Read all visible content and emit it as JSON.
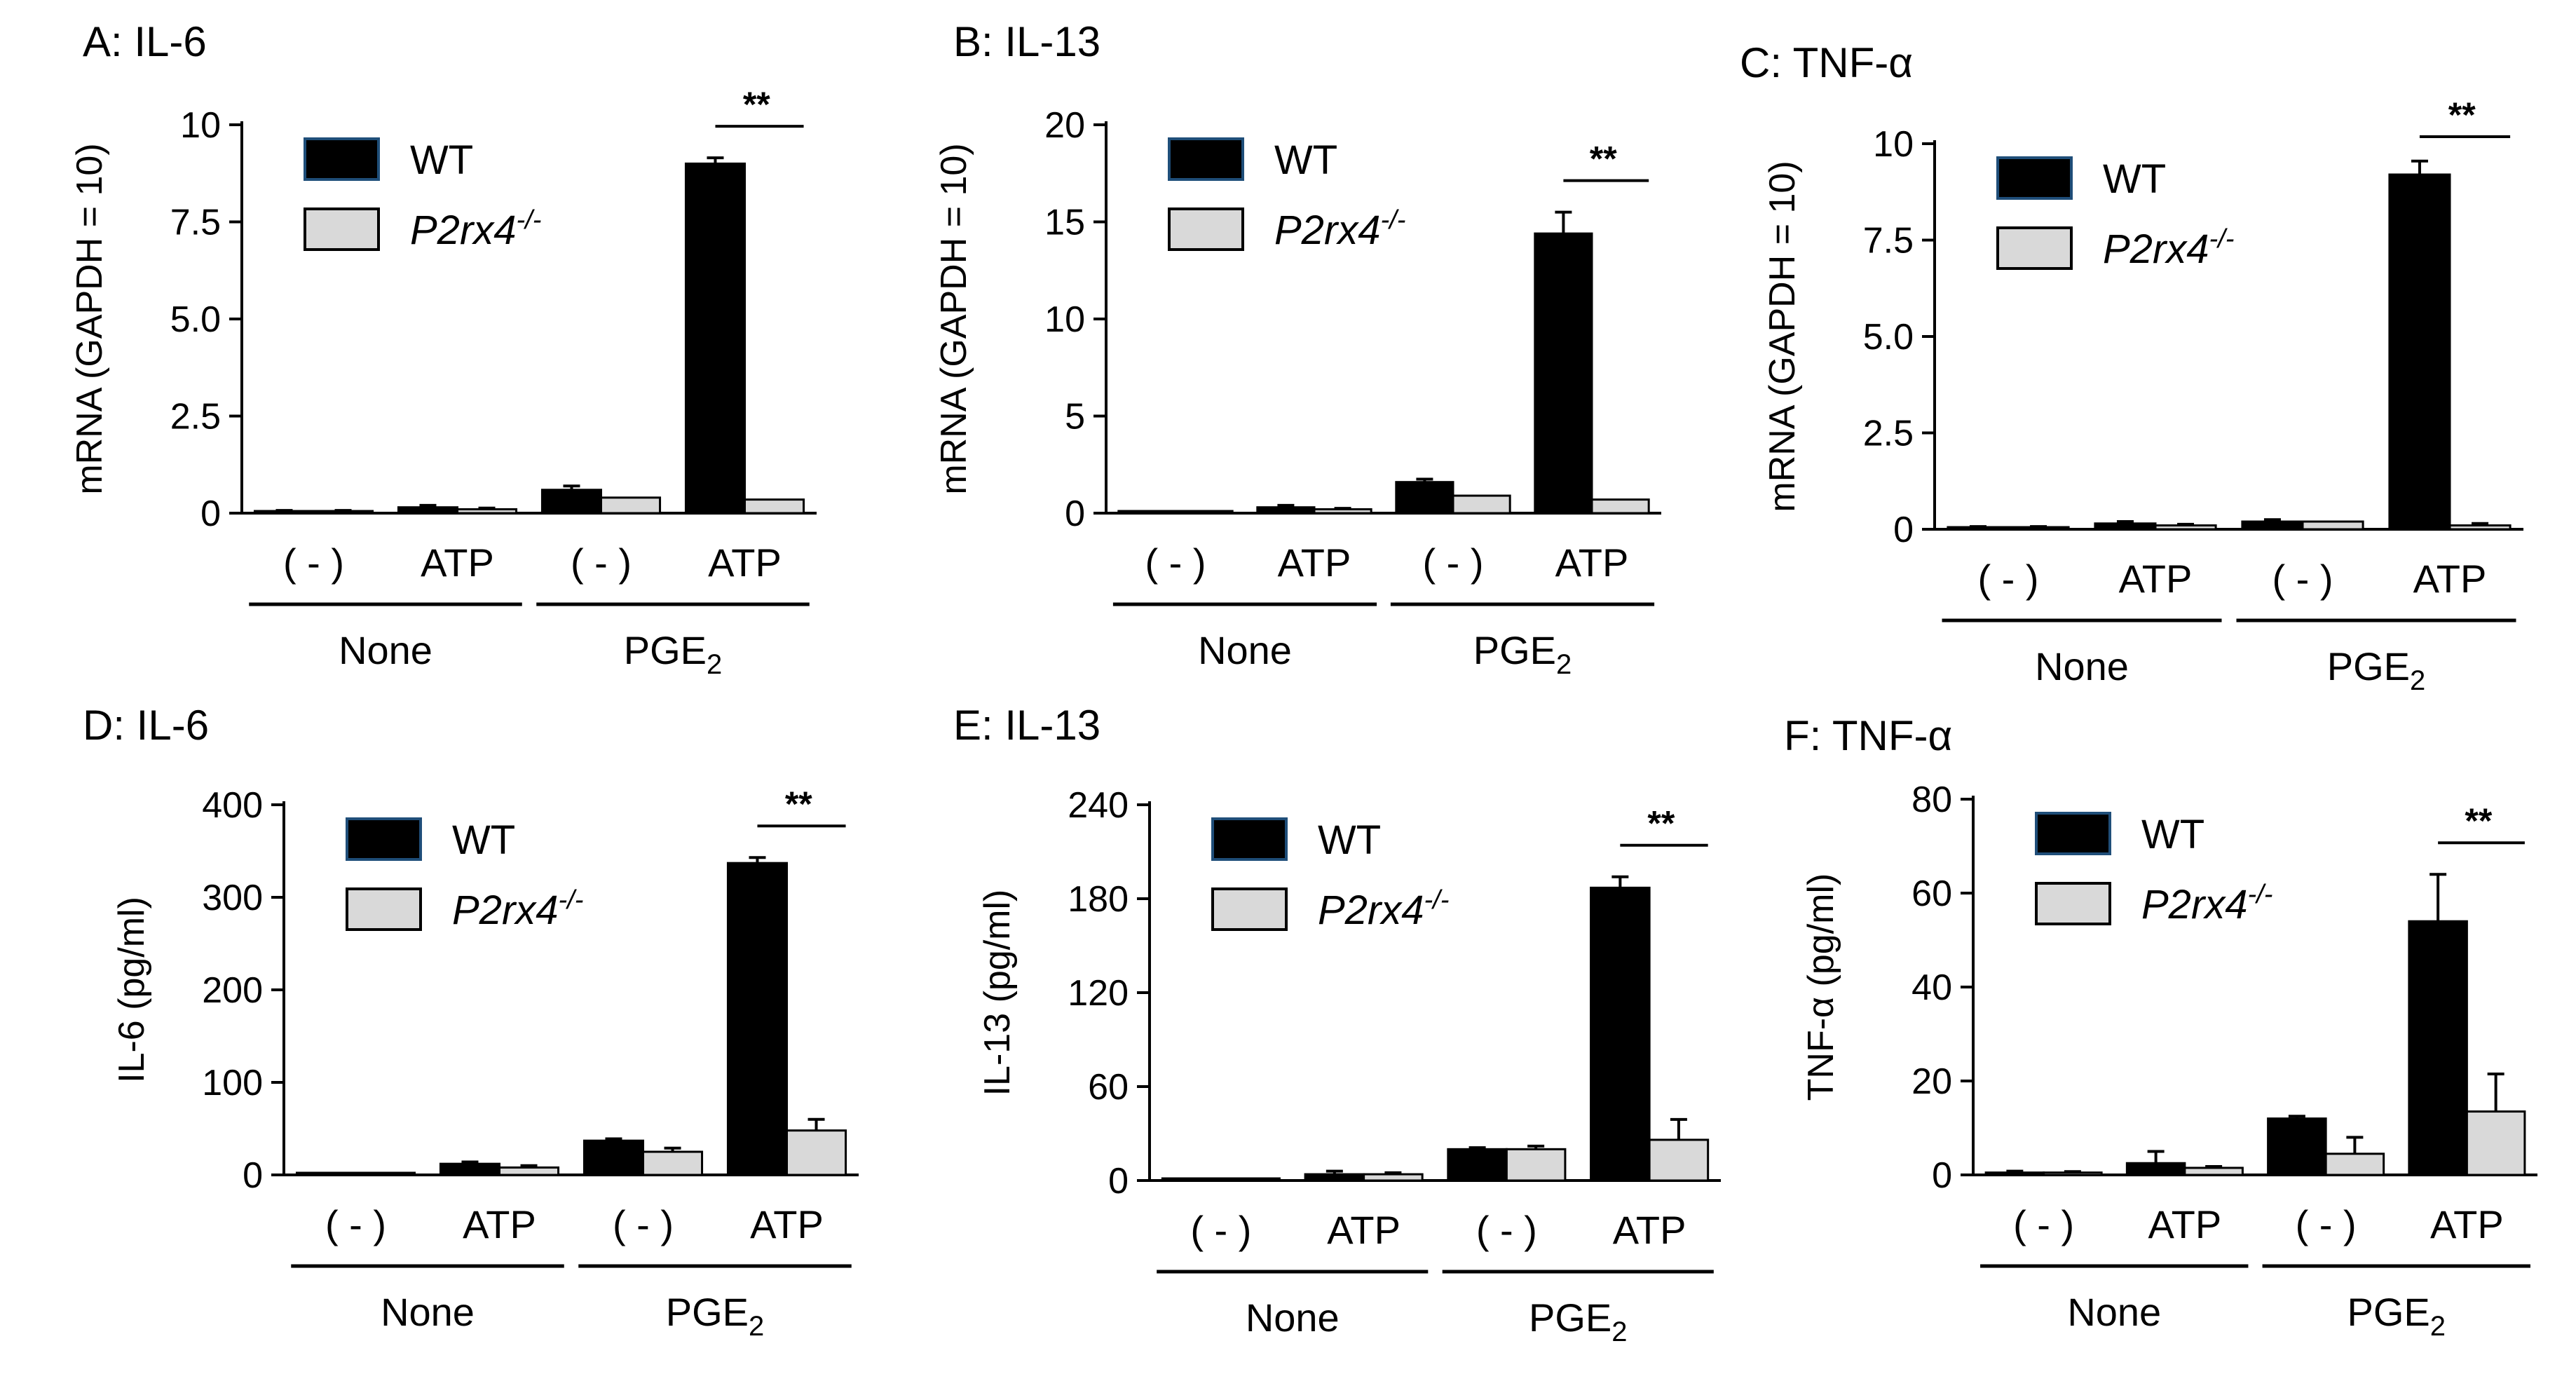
{
  "colors": {
    "wt": "#000000",
    "ko": "#d9d9d9",
    "axis": "#000000"
  },
  "legend": {
    "wt": "WT",
    "ko_base": "P2rx4",
    "ko_sup": "-/-"
  },
  "conditions": [
    "( - )",
    "ATP",
    "( - )",
    "ATP"
  ],
  "groups": {
    "none": "None",
    "pge_base": "PGE",
    "pge_sub": "2"
  },
  "chart_data": [
    {
      "type": "bar",
      "title": "A: IL-6",
      "ylabel": "mRNA (GAPDH = 10)",
      "ylim": [
        0,
        10
      ],
      "yticks": [
        "0",
        "2.5",
        "5.0",
        "7.5",
        "10"
      ],
      "ytick_values": [
        0,
        2.5,
        5,
        7.5,
        10
      ],
      "categories": [
        "( - ) None",
        "ATP None",
        "( - ) PGE2",
        "ATP PGE2"
      ],
      "series": [
        {
          "name": "WT",
          "values": [
            0.05,
            0.15,
            0.6,
            9.0
          ],
          "errors": [
            0.02,
            0.05,
            0.1,
            0.15
          ]
        },
        {
          "name": "P2rx4-/-",
          "values": [
            0.05,
            0.1,
            0.4,
            0.35
          ],
          "errors": [
            0.02,
            0.03,
            0.0,
            0.0
          ]
        }
      ],
      "significance": "**"
    },
    {
      "type": "bar",
      "title": "B: IL-13",
      "ylabel": "mRNA (GAPDH = 10)",
      "ylim": [
        0,
        20
      ],
      "yticks": [
        "0",
        "5",
        "10",
        "15",
        "20"
      ],
      "ytick_values": [
        0,
        5,
        10,
        15,
        20
      ],
      "categories": [
        "( - ) None",
        "ATP None",
        "( - ) PGE2",
        "ATP PGE2"
      ],
      "series": [
        {
          "name": "WT",
          "values": [
            0.0,
            0.3,
            1.6,
            14.4
          ],
          "errors": [
            0.0,
            0.1,
            0.15,
            1.1
          ]
        },
        {
          "name": "P2rx4-/-",
          "values": [
            0.0,
            0.2,
            0.9,
            0.7
          ],
          "errors": [
            0.0,
            0.05,
            0.0,
            0.0
          ]
        }
      ],
      "significance": "**"
    },
    {
      "type": "bar",
      "title": "C: TNF-α",
      "ylabel": "mRNA (GAPDH = 10)",
      "ylim": [
        0,
        10
      ],
      "yticks": [
        "0",
        "2.5",
        "5.0",
        "7.5",
        "10"
      ],
      "ytick_values": [
        0,
        2.5,
        5,
        7.5,
        10
      ],
      "categories": [
        "( - ) None",
        "ATP None",
        "( - ) PGE2",
        "ATP PGE2"
      ],
      "series": [
        {
          "name": "WT",
          "values": [
            0.05,
            0.15,
            0.2,
            9.2
          ],
          "errors": [
            0.02,
            0.05,
            0.05,
            0.35
          ]
        },
        {
          "name": "P2rx4-/-",
          "values": [
            0.05,
            0.1,
            0.2,
            0.1
          ],
          "errors": [
            0.02,
            0.03,
            0.0,
            0.05
          ]
        }
      ],
      "significance": "**"
    },
    {
      "type": "bar",
      "title": "D: IL-6",
      "ylabel": "IL-6 (pg/ml)",
      "ylim": [
        0,
        400
      ],
      "yticks": [
        "0",
        "100",
        "200",
        "300",
        "400"
      ],
      "ytick_values": [
        0,
        100,
        200,
        300,
        400
      ],
      "categories": [
        "( - ) None",
        "ATP None",
        "( - ) PGE2",
        "ATP PGE2"
      ],
      "series": [
        {
          "name": "WT",
          "values": [
            1,
            12,
            37,
            337
          ],
          "errors": [
            0,
            2,
            2,
            6
          ]
        },
        {
          "name": "P2rx4-/-",
          "values": [
            1,
            8,
            25,
            48
          ],
          "errors": [
            0,
            2,
            4,
            12
          ]
        }
      ],
      "significance": "**"
    },
    {
      "type": "bar",
      "title": "E: IL-13",
      "ylabel": "IL-13 (pg/ml)",
      "ylim": [
        0,
        240
      ],
      "yticks": [
        "0",
        "60",
        "120",
        "180",
        "240"
      ],
      "ytick_values": [
        0,
        60,
        120,
        180,
        240
      ],
      "categories": [
        "( - ) None",
        "ATP None",
        "( - ) PGE2",
        "ATP PGE2"
      ],
      "series": [
        {
          "name": "WT",
          "values": [
            0,
            4,
            20,
            187
          ],
          "errors": [
            0,
            2,
            1,
            7
          ]
        },
        {
          "name": "P2rx4-/-",
          "values": [
            0,
            4,
            20,
            26
          ],
          "errors": [
            0,
            1,
            2,
            13
          ]
        }
      ],
      "significance": "**"
    },
    {
      "type": "bar",
      "title": "F: TNF-α",
      "ylabel": "TNF-α (pg/ml)",
      "ylim": [
        0,
        80
      ],
      "yticks": [
        "0",
        "20",
        "40",
        "60",
        "80"
      ],
      "ytick_values": [
        0,
        20,
        40,
        60,
        80
      ],
      "categories": [
        "( - ) None",
        "ATP None",
        "( - ) PGE2",
        "ATP PGE2"
      ],
      "series": [
        {
          "name": "WT",
          "values": [
            0.5,
            2.5,
            12,
            54
          ],
          "errors": [
            0.3,
            2.5,
            0.5,
            10
          ]
        },
        {
          "name": "P2rx4-/-",
          "values": [
            0.5,
            1.5,
            4.5,
            13.5
          ],
          "errors": [
            0.2,
            0.3,
            3.5,
            8
          ]
        }
      ],
      "significance": "**"
    }
  ]
}
